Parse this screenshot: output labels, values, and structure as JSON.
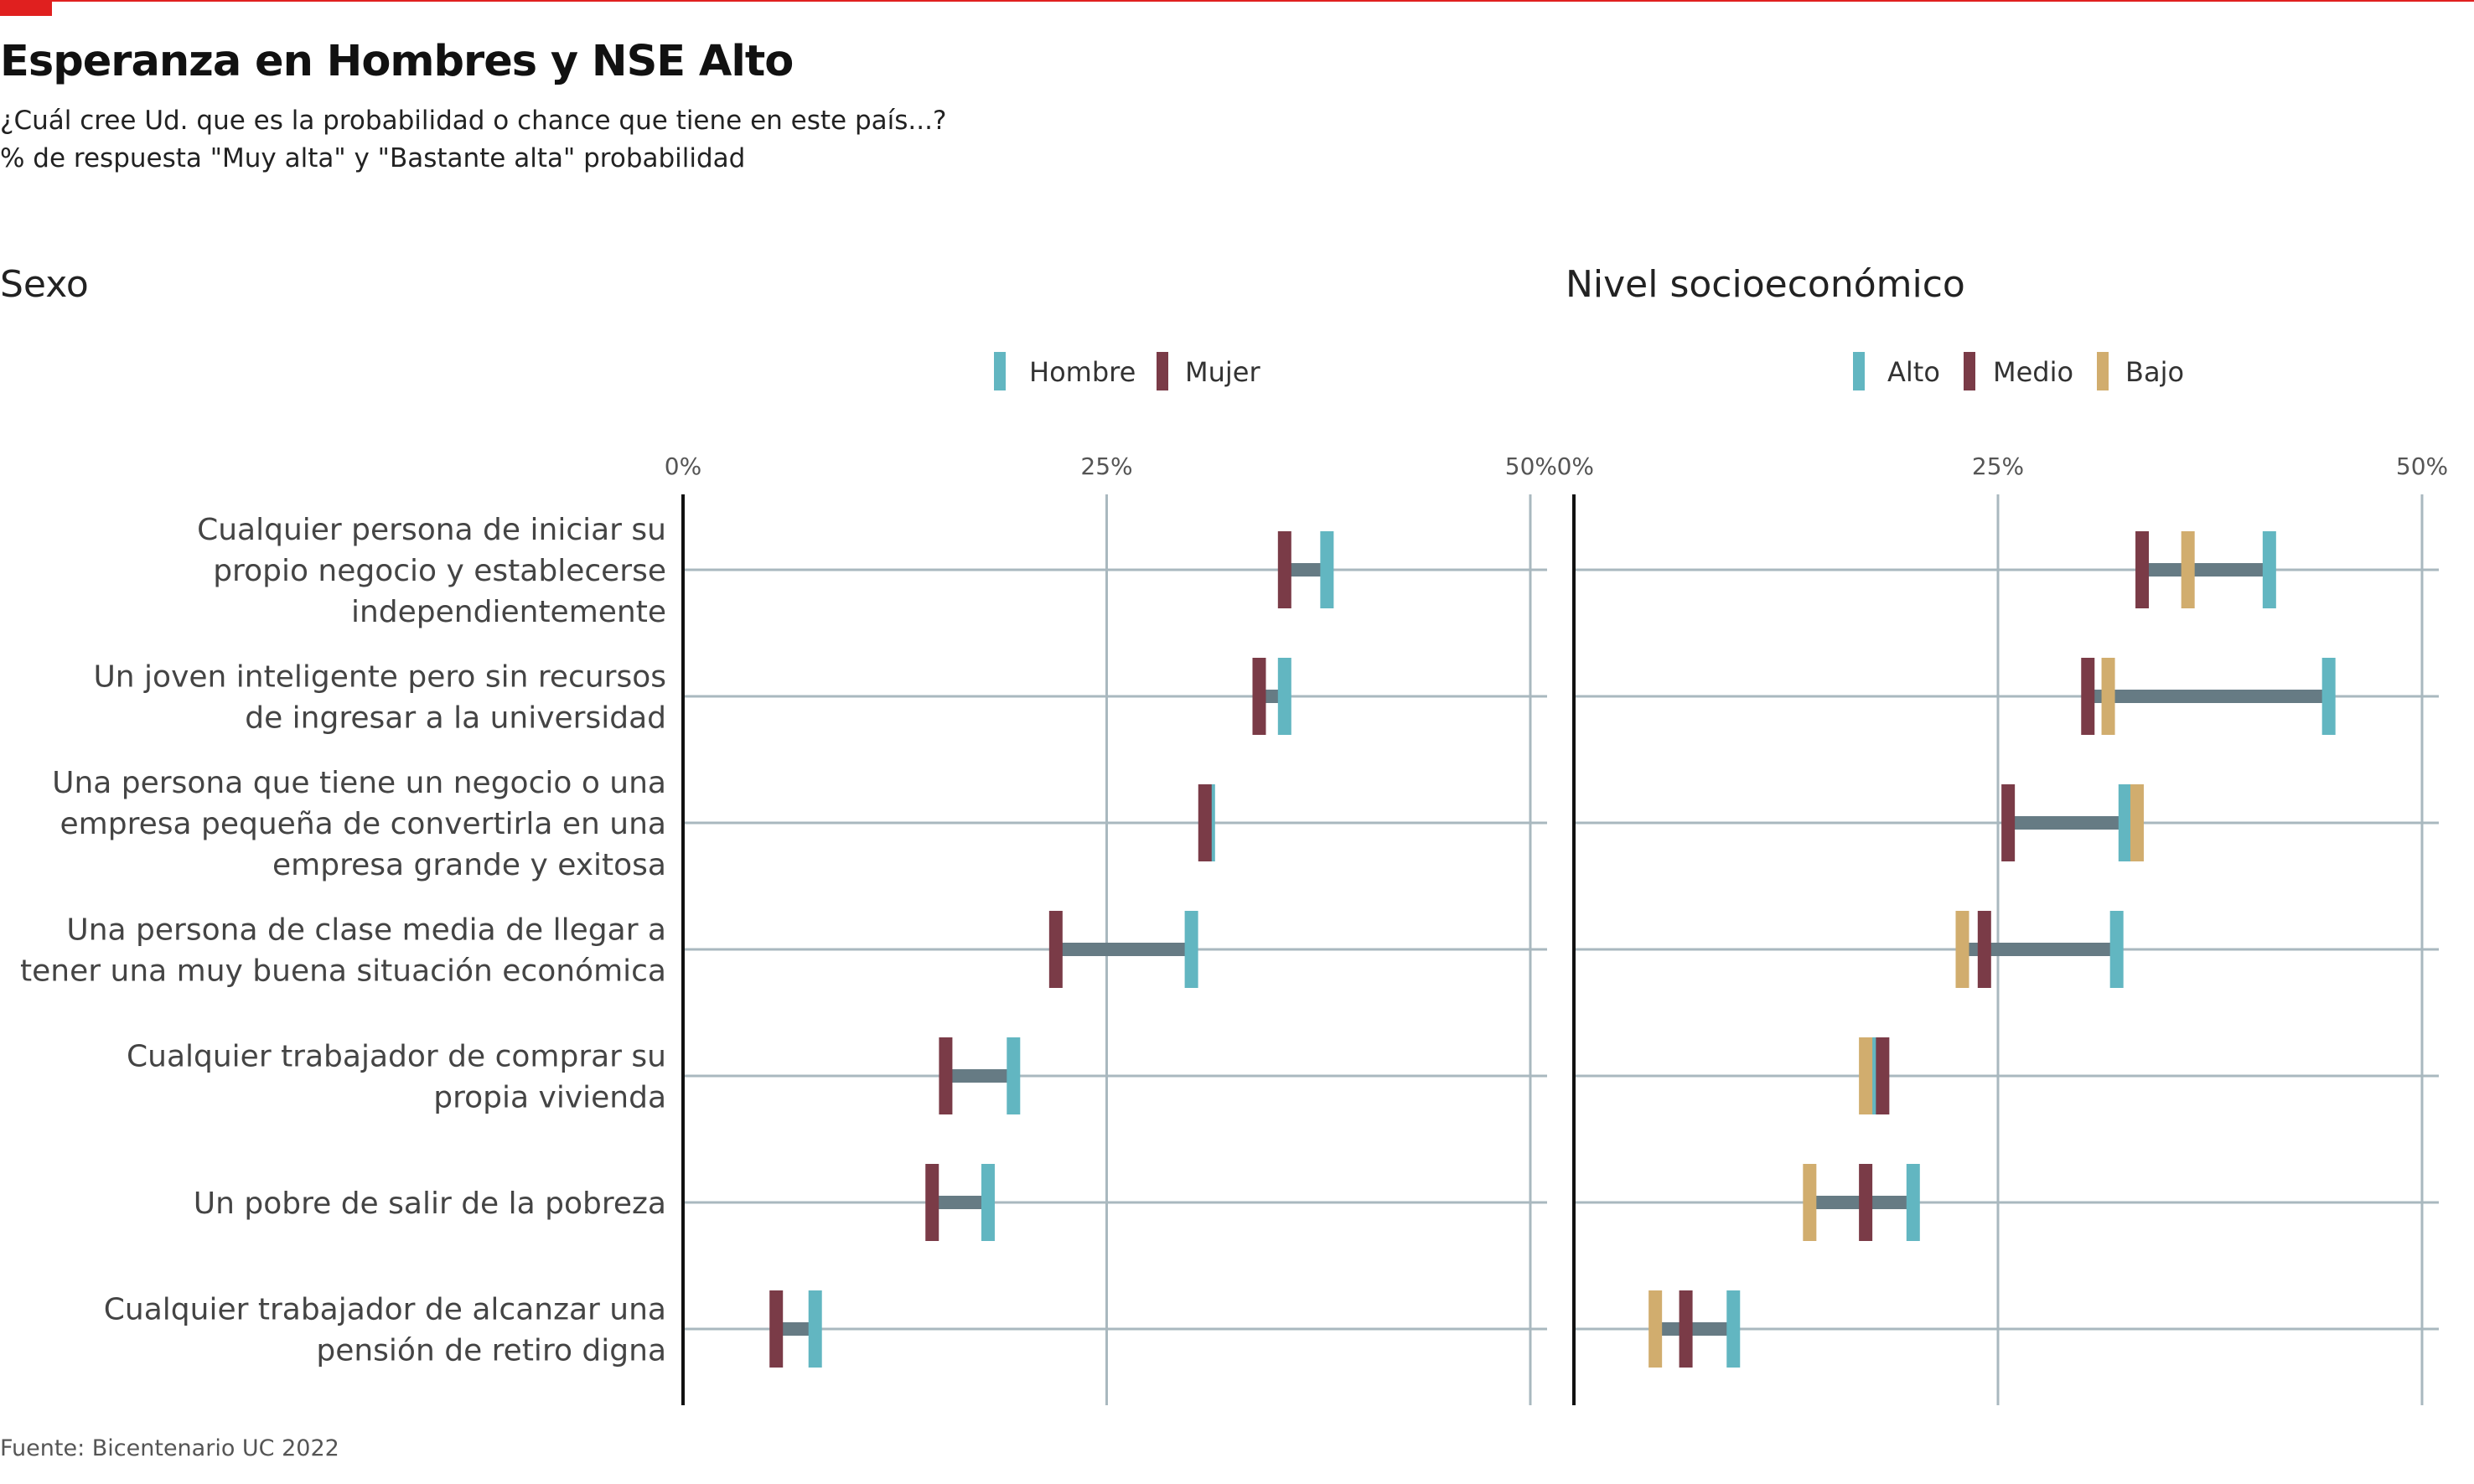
{
  "header": {
    "title": "Esperanza en Hombres y NSE Alto",
    "subtitle1": "¿Cuál cree Ud. que es la probabilidad o chance que tiene en este país...?",
    "subtitle2": "% de respuesta \"Muy alta\" y \"Bastante alta\" probabilidad"
  },
  "source": "Fuente: Bicentenario UC 2022",
  "colors": {
    "hombre": "#62b6c1",
    "mujer": "#7a3b47",
    "alto": "#62b6c1",
    "medio": "#7a3b47",
    "bajo": "#d1ad6e",
    "range_bar": "#667b84",
    "grid": "#a9b8bf",
    "axis": "#111111"
  },
  "chart_data": [
    {
      "type": "dumbbell",
      "title": "Sexo",
      "xlim": [
        0,
        50
      ],
      "ticks": [
        "0%",
        "25%",
        "50%"
      ],
      "tick_values": [
        0,
        25,
        50
      ],
      "grid": true,
      "legend_position": "top-right",
      "categories": [
        [
          "Cualquier persona de iniciar su",
          "propio negocio y establecerse",
          "independientemente"
        ],
        [
          "Un joven inteligente pero sin recursos",
          "de ingresar a la universidad"
        ],
        [
          "Una persona que tiene un negocio o una",
          "empresa pequeña de convertirla en una",
          "empresa grande y exitosa"
        ],
        [
          "Una persona de clase media de llegar a",
          "tener una muy buena situación económica"
        ],
        [
          "Cualquier trabajador de comprar su",
          "propia vivienda"
        ],
        [
          "Un pobre de salir de la pobreza"
        ],
        [
          "Cualquier trabajador de alcanzar una",
          "pensión de retiro digna"
        ]
      ],
      "series": [
        {
          "name": "Hombre",
          "key": "hombre",
          "values": [
            38,
            35.5,
            31,
            30,
            19.5,
            18,
            7.8
          ]
        },
        {
          "name": "Mujer",
          "key": "mujer",
          "values": [
            35.5,
            34,
            30.8,
            22,
            15.5,
            14.7,
            5.5
          ]
        }
      ]
    },
    {
      "type": "dumbbell",
      "title": "Nivel socioeconómico",
      "xlim": [
        0,
        50
      ],
      "ticks": [
        "0%",
        "25%",
        "50%"
      ],
      "tick_values": [
        0,
        25,
        50
      ],
      "grid": true,
      "legend_position": "top-right",
      "series": [
        {
          "name": "Alto",
          "key": "alto",
          "values": [
            41,
            44.5,
            32.5,
            32,
            17.5,
            20,
            9.4
          ]
        },
        {
          "name": "Medio",
          "key": "medio",
          "values": [
            33.5,
            30.3,
            25.6,
            24.2,
            18.2,
            17.2,
            6.6
          ]
        },
        {
          "name": "Bajo",
          "key": "bajo",
          "values": [
            36.2,
            31.5,
            33.2,
            22.9,
            17.2,
            13.9,
            4.8
          ]
        }
      ]
    }
  ]
}
